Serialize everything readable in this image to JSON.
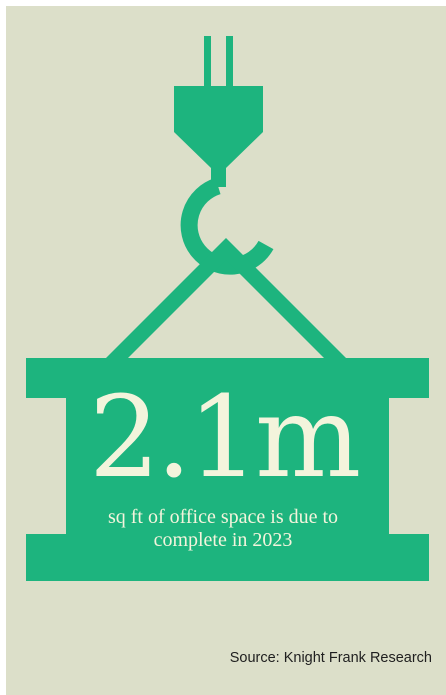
{
  "stat": {
    "value": "2.1m",
    "caption": "sq ft of office space is due to complete in 2023"
  },
  "source": "Source: Knight Frank Research",
  "colors": {
    "background": "#dcdfc9",
    "accent": "#1db47e",
    "text_light": "#f3f4dc",
    "text_dark": "#1f1f1f"
  },
  "icons": [
    "crane-hook-icon",
    "cargo-container-icon"
  ]
}
